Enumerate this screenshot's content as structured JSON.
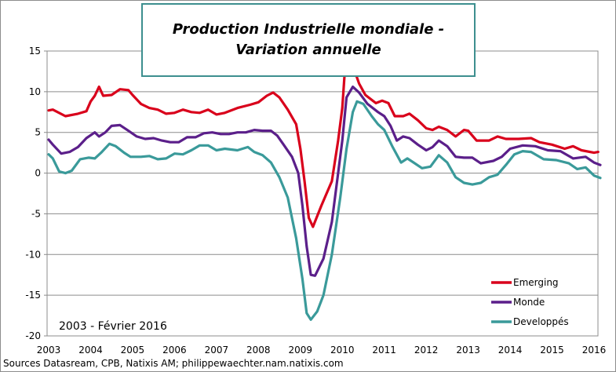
{
  "chart_data": {
    "type": "line",
    "title": [
      "Production Industrielle mondiale -",
      "Variation annuelle"
    ],
    "annotation": "2003 - Février 2016",
    "source": "Sources Datasream, CPB,  Natixis AM; philippewaechter.nam.natixis.com",
    "xlim": [
      2003,
      2016
    ],
    "ylim": [
      -20,
      15
    ],
    "xticks": [
      "2003",
      "2004",
      "2005",
      "2006",
      "2007",
      "2008",
      "2009",
      "2010",
      "2011",
      "2012",
      "2013",
      "2014",
      "2015",
      "2016"
    ],
    "yticks": [
      15,
      10,
      5,
      0,
      -5,
      -10,
      -15,
      -20
    ],
    "grid": "horizontal",
    "legend_position": "bottom-right",
    "series": [
      {
        "name": "Emerging",
        "color": "#d9001b",
        "x": [
          2003.0,
          2003.1,
          2003.4,
          2003.7,
          2003.9,
          2004.0,
          2004.1,
          2004.2,
          2004.3,
          2004.5,
          2004.7,
          2004.9,
          2005.0,
          2005.2,
          2005.4,
          2005.6,
          2005.8,
          2006.0,
          2006.2,
          2006.4,
          2006.6,
          2006.8,
          2007.0,
          2007.2,
          2007.5,
          2007.8,
          2008.0,
          2008.2,
          2008.35,
          2008.5,
          2008.7,
          2008.9,
          2009.0,
          2009.1,
          2009.2,
          2009.3,
          2009.5,
          2009.75,
          2009.9,
          2010.0,
          2010.05,
          2010.15,
          2010.25,
          2010.4,
          2010.55,
          2010.8,
          2010.95,
          2011.1,
          2011.25,
          2011.45,
          2011.6,
          2011.8,
          2012.0,
          2012.15,
          2012.3,
          2012.5,
          2012.7,
          2012.9,
          2013.0,
          2013.2,
          2013.5,
          2013.7,
          2013.9,
          2014.2,
          2014.5,
          2014.7,
          2015.0,
          2015.3,
          2015.5,
          2015.7,
          2016.0,
          2016.1
        ],
        "y": [
          7.7,
          7.8,
          7.0,
          7.3,
          7.6,
          8.8,
          9.5,
          10.6,
          9.5,
          9.6,
          10.3,
          10.2,
          9.6,
          8.5,
          8.0,
          7.8,
          7.3,
          7.4,
          7.8,
          7.5,
          7.4,
          7.8,
          7.2,
          7.4,
          8.0,
          8.4,
          8.7,
          9.5,
          9.9,
          9.3,
          7.8,
          6.0,
          3.0,
          -1.0,
          -5.5,
          -6.6,
          -4.0,
          -1.0,
          4.0,
          8.0,
          11.8,
          13.8,
          13.2,
          11.0,
          9.6,
          8.6,
          8.9,
          8.6,
          7.0,
          7.0,
          7.3,
          6.5,
          5.5,
          5.3,
          5.7,
          5.3,
          4.5,
          5.3,
          5.2,
          4.0,
          4.0,
          4.5,
          4.2,
          4.2,
          4.3,
          3.8,
          3.5,
          3.0,
          3.3,
          2.8,
          2.5,
          2.6
        ]
      },
      {
        "name": "Monde",
        "color": "#5b1f8a",
        "x": [
          2003.0,
          2003.1,
          2003.3,
          2003.5,
          2003.7,
          2003.9,
          2004.1,
          2004.2,
          2004.35,
          2004.5,
          2004.7,
          2004.9,
          2005.1,
          2005.3,
          2005.5,
          2005.7,
          2005.9,
          2006.1,
          2006.3,
          2006.5,
          2006.7,
          2006.9,
          2007.1,
          2007.3,
          2007.5,
          2007.7,
          2007.9,
          2008.1,
          2008.3,
          2008.45,
          2008.6,
          2008.8,
          2008.95,
          2009.05,
          2009.15,
          2009.25,
          2009.35,
          2009.55,
          2009.75,
          2009.9,
          2010.0,
          2010.1,
          2010.25,
          2010.4,
          2010.6,
          2010.85,
          2011.0,
          2011.15,
          2011.3,
          2011.45,
          2011.6,
          2011.8,
          2012.0,
          2012.15,
          2012.3,
          2012.5,
          2012.7,
          2012.9,
          2013.1,
          2013.3,
          2013.6,
          2013.8,
          2014.0,
          2014.3,
          2014.6,
          2014.9,
          2015.2,
          2015.5,
          2015.8,
          2016.0,
          2016.15
        ],
        "y": [
          4.1,
          3.5,
          2.4,
          2.6,
          3.2,
          4.3,
          5.0,
          4.5,
          5.0,
          5.8,
          5.9,
          5.2,
          4.5,
          4.2,
          4.3,
          4.0,
          3.8,
          3.8,
          4.4,
          4.4,
          4.9,
          5.0,
          4.8,
          4.8,
          5.0,
          5.0,
          5.3,
          5.2,
          5.2,
          4.6,
          3.5,
          2.0,
          0,
          -4,
          -9,
          -12.5,
          -12.6,
          -10.5,
          -6,
          0,
          4,
          9.3,
          10.6,
          9.9,
          8.5,
          7.5,
          7.0,
          5.8,
          4.0,
          4.5,
          4.3,
          3.5,
          2.8,
          3.2,
          4.0,
          3.3,
          2.0,
          1.9,
          1.9,
          1.2,
          1.5,
          2.0,
          3.0,
          3.4,
          3.3,
          2.8,
          2.7,
          1.8,
          2.0,
          1.3,
          1.0
        ]
      },
      {
        "name": "Developpés",
        "color": "#3a9a9a",
        "x": [
          2003.0,
          2003.1,
          2003.25,
          2003.4,
          2003.55,
          2003.75,
          2003.95,
          2004.1,
          2004.25,
          2004.45,
          2004.6,
          2004.8,
          2004.95,
          2005.2,
          2005.4,
          2005.6,
          2005.8,
          2006.0,
          2006.2,
          2006.4,
          2006.6,
          2006.8,
          2007.0,
          2007.2,
          2007.5,
          2007.75,
          2007.9,
          2008.1,
          2008.3,
          2008.5,
          2008.7,
          2008.9,
          2009.05,
          2009.15,
          2009.25,
          2009.4,
          2009.55,
          2009.75,
          2009.95,
          2010.1,
          2010.25,
          2010.35,
          2010.5,
          2010.7,
          2010.85,
          2011.0,
          2011.2,
          2011.4,
          2011.55,
          2011.7,
          2011.9,
          2012.1,
          2012.3,
          2012.5,
          2012.7,
          2012.9,
          2013.1,
          2013.3,
          2013.5,
          2013.7,
          2013.9,
          2014.1,
          2014.3,
          2014.5,
          2014.8,
          2015.1,
          2015.4,
          2015.6,
          2015.8,
          2016.0,
          2016.15
        ],
        "y": [
          2.3,
          1.8,
          0.2,
          0,
          0.3,
          1.7,
          1.9,
          1.8,
          2.5,
          3.6,
          3.3,
          2.5,
          2.0,
          2.0,
          2.1,
          1.7,
          1.8,
          2.4,
          2.3,
          2.8,
          3.4,
          3.4,
          2.8,
          3.0,
          2.8,
          3.2,
          2.6,
          2.2,
          1.3,
          -0.5,
          -3,
          -8,
          -13,
          -17.2,
          -18,
          -17,
          -15,
          -10,
          -3,
          3,
          7.5,
          8.8,
          8.5,
          7.0,
          6.0,
          5.3,
          3.2,
          1.3,
          1.8,
          1.3,
          0.6,
          0.8,
          2.2,
          1.3,
          -0.5,
          -1.2,
          -1.4,
          -1.2,
          -0.5,
          -0.2,
          1.0,
          2.3,
          2.7,
          2.6,
          1.7,
          1.6,
          1.2,
          0.5,
          0.7,
          -0.3,
          -0.6
        ]
      }
    ]
  }
}
